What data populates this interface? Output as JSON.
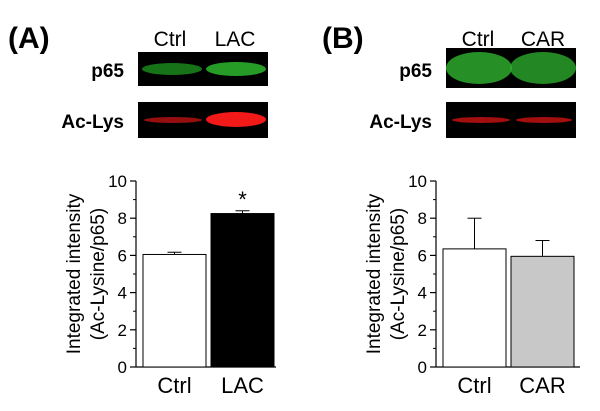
{
  "panels": [
    {
      "letter": "(A)",
      "lanes": [
        "Ctrl",
        "LAC"
      ],
      "blot_rows": [
        "p65",
        "Ac-Lys"
      ]
    },
    {
      "letter": "(B)",
      "lanes": [
        "Ctrl",
        "CAR"
      ],
      "blot_rows": [
        "p65",
        "Ac-Lys"
      ]
    }
  ],
  "colors": {
    "p65_band": "#2fc22f",
    "aclys_band": "#e01010",
    "lac_bar": "#000000",
    "car_bar": "#c8c8c8",
    "ctrl_bar": "#ffffff"
  },
  "chart_data": [
    {
      "type": "bar",
      "categories": [
        "Ctrl",
        "LAC"
      ],
      "values": [
        6.05,
        8.25
      ],
      "errors": [
        0.12,
        0.15
      ],
      "bar_colors": [
        "#ffffff",
        "#000000"
      ],
      "annotations": [
        "",
        "*"
      ],
      "ylabel": "Integrated intensity\n(Ac-Lysine/p65)",
      "ylabel_lines": [
        "Integrated intensity",
        "(Ac-Lysine/p65)"
      ],
      "ylim": [
        0,
        10
      ],
      "yticks": [
        0,
        2,
        4,
        6,
        8,
        10
      ],
      "grid": false
    },
    {
      "type": "bar",
      "categories": [
        "Ctrl",
        "CAR"
      ],
      "values": [
        6.35,
        5.95
      ],
      "errors": [
        1.65,
        0.85
      ],
      "bar_colors": [
        "#ffffff",
        "#c8c8c8"
      ],
      "annotations": [
        "",
        ""
      ],
      "ylabel": "Integrated intensity\n(Ac-Lysine/p65)",
      "ylabel_lines": [
        "Integrated intensity",
        "(Ac-Lysine/p65)"
      ],
      "ylim": [
        0,
        10
      ],
      "yticks": [
        0,
        2,
        4,
        6,
        8,
        10
      ],
      "grid": false
    }
  ]
}
